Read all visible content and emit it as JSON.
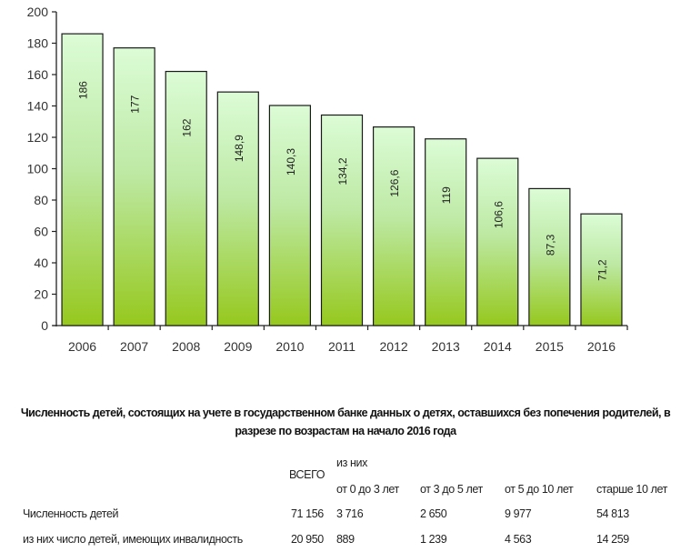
{
  "chart_data": {
    "type": "bar",
    "title": "",
    "xlabel": "",
    "ylabel": "",
    "categories": [
      "2006",
      "2007",
      "2008",
      "2009",
      "2010",
      "2011",
      "2012",
      "2013",
      "2014",
      "2015",
      "2016"
    ],
    "values": [
      186,
      177,
      162,
      148.9,
      140.3,
      134.2,
      126.6,
      119,
      106.6,
      87.3,
      71.2
    ],
    "data_labels": [
      "186",
      "177",
      "162",
      "148,9",
      "140,3",
      "134,2",
      "126,6",
      "119",
      "106,6",
      "87,3",
      "71,2"
    ],
    "ylim": [
      0,
      200
    ],
    "yticks": [
      0,
      20,
      40,
      60,
      80,
      100,
      120,
      140,
      160,
      180,
      200
    ],
    "grid": false,
    "colors": {
      "bar_top": "#dcfcd6",
      "bar_bottom": "#96c81e",
      "bar_border": "#1a1a1a"
    }
  },
  "table": {
    "title_line1": "Численность детей, состоящих на учете в государственном банке данных о детях, оставшихся без попечения родителей, в",
    "title_line2": "разрезе по возрастам на начало 2016 года",
    "header_total": "ВСЕГО",
    "header_group": "из них",
    "columns": [
      "от 0 до 3 лет",
      "от 3 до 5 лет",
      "от 5 до 10 лет",
      "старше 10 лет"
    ],
    "rows": [
      {
        "label": "Численность детей",
        "total": "71 156",
        "values": [
          "3 716",
          "2 650",
          "9 977",
          "54 813"
        ]
      },
      {
        "label": "из них число детей, имеющих инвалидность",
        "total": "20 950",
        "values": [
          "889",
          "1 239",
          "4 563",
          "14 259"
        ]
      }
    ]
  }
}
